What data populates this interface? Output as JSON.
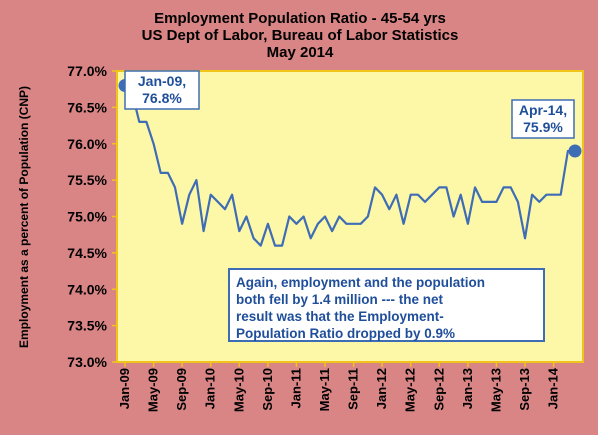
{
  "colors": {
    "background": "#d98585",
    "plot_area": "#fdf7a8",
    "plot_border": "#f0c419",
    "line": "#3e6db5",
    "text_dark": "#000000",
    "callout_text": "#1f4e9a"
  },
  "chart_data": {
    "type": "line",
    "title": "Employment Population Ratio - 45-54 yrs",
    "subtitle_lines": [
      "US Dept of Labor, Bureau of Labor Statistics",
      "May 2014"
    ],
    "ylabel": "Employment as a percent of Population (CNP)",
    "xlabel": "",
    "ylim": [
      73.0,
      77.0
    ],
    "y_ticks": [
      "73.0%",
      "73.5%",
      "74.0%",
      "74.5%",
      "75.0%",
      "75.5%",
      "76.0%",
      "76.5%",
      "77.0%"
    ],
    "y_tick_values": [
      73.0,
      73.5,
      74.0,
      74.5,
      75.0,
      75.5,
      76.0,
      76.5,
      77.0
    ],
    "x_ticks": [
      "Jan-09",
      "May-09",
      "Sep-09",
      "Jan-10",
      "May-10",
      "Sep-10",
      "Jan-11",
      "May-11",
      "Sep-11",
      "Jan-12",
      "May-12",
      "Sep-12",
      "Jan-13",
      "May-13",
      "Sep-13",
      "Jan-14"
    ],
    "x_tick_indices": [
      0,
      4,
      8,
      12,
      16,
      20,
      24,
      28,
      32,
      36,
      40,
      44,
      48,
      52,
      56,
      60
    ],
    "grid": false,
    "series": [
      {
        "x": [
          "Jan-09",
          "Feb-09",
          "Mar-09",
          "Apr-09",
          "May-09",
          "Jun-09",
          "Jul-09",
          "Aug-09",
          "Sep-09",
          "Oct-09",
          "Nov-09",
          "Dec-09",
          "Jan-10",
          "Feb-10",
          "Mar-10",
          "Apr-10",
          "May-10",
          "Jun-10",
          "Jul-10",
          "Aug-10",
          "Sep-10",
          "Oct-10",
          "Nov-10",
          "Dec-10",
          "Jan-11",
          "Feb-11",
          "Mar-11",
          "Apr-11",
          "May-11",
          "Jun-11",
          "Jul-11",
          "Aug-11",
          "Sep-11",
          "Oct-11",
          "Nov-11",
          "Dec-11",
          "Jan-12",
          "Feb-12",
          "Mar-12",
          "Apr-12",
          "May-12",
          "Jun-12",
          "Jul-12",
          "Aug-12",
          "Sep-12",
          "Oct-12",
          "Nov-12",
          "Dec-12",
          "Jan-13",
          "Feb-13",
          "Mar-13",
          "Apr-13",
          "May-13",
          "Jun-13",
          "Jul-13",
          "Aug-13",
          "Sep-13",
          "Oct-13",
          "Nov-13",
          "Dec-13",
          "Jan-14",
          "Feb-14",
          "Mar-14",
          "Apr-14"
        ],
        "values": [
          76.8,
          76.7,
          76.3,
          76.3,
          76.0,
          75.6,
          75.6,
          75.4,
          74.9,
          75.3,
          75.5,
          74.8,
          75.3,
          75.2,
          75.1,
          75.3,
          74.8,
          75.0,
          74.7,
          74.6,
          74.9,
          74.6,
          74.6,
          75.0,
          74.9,
          75.0,
          74.7,
          74.9,
          75.0,
          74.8,
          75.0,
          74.9,
          74.9,
          74.9,
          75.0,
          75.4,
          75.3,
          75.1,
          75.3,
          74.9,
          75.3,
          75.3,
          75.2,
          75.3,
          75.4,
          75.4,
          75.0,
          75.3,
          74.9,
          75.4,
          75.2,
          75.2,
          75.2,
          75.4,
          75.4,
          75.2,
          74.7,
          75.3,
          75.2,
          75.3,
          75.3,
          75.3,
          75.9,
          75.9
        ]
      }
    ],
    "annotations": [
      {
        "label_lines": [
          "Jan-09,",
          "76.8%"
        ],
        "x": "Jan-09",
        "y": 76.8
      },
      {
        "label_lines": [
          "Apr-14,",
          "75.9%"
        ],
        "x": "Apr-14",
        "y": 75.9
      }
    ],
    "callout_lines": [
      "Again, employment and the population",
      "both fell by 1.4 million --- the net",
      "result was that the Employment-",
      "Population Ratio dropped by 0.9%"
    ]
  }
}
